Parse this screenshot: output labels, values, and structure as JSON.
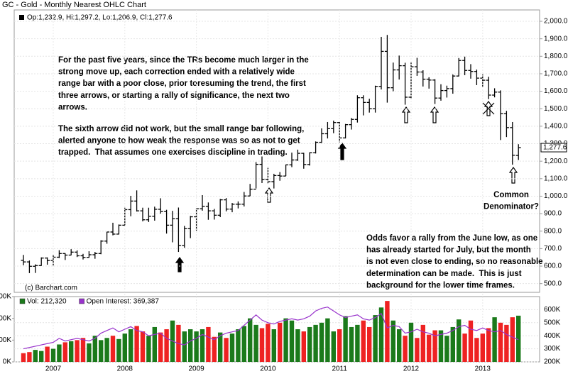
{
  "chart_data": [
    {
      "type": "ohlc",
      "title": "GC - Gold - Monthly Nearest OHLC Chart",
      "legend_text": "Op:1,232.9, Hi:1,297.2, Lo:1,206.9, Cl:1,277.6",
      "credit": "(c) Barchart.com",
      "color": "#000000",
      "grid": true,
      "open": [
        633,
        624,
        599,
        603,
        646,
        632,
        651,
        672,
        663,
        680,
        659,
        650,
        665,
        672,
        743,
        795,
        783,
        834,
        923,
        972,
        916,
        865,
        885,
        925,
        912,
        834,
        871,
        718,
        814,
        882,
        928,
        942,
        916,
        891,
        979,
        926,
        954,
        954,
        1001,
        1040,
        1182,
        1096,
        1083,
        1118,
        1115,
        1179,
        1207,
        1245,
        1181,
        1248,
        1308,
        1357,
        1386,
        1421,
        1333,
        1409,
        1439,
        1563,
        1536,
        1500,
        1628,
        1828,
        1620,
        1722,
        1746,
        1566,
        1740,
        1710,
        1669,
        1664,
        1561,
        1604,
        1615,
        1687,
        1776,
        1719,
        1713,
        1675,
        1663,
        1578,
        1595,
        1472,
        1392,
        1232.9
      ],
      "high": [
        664,
        632,
        610,
        650,
        650,
        665,
        691,
        674,
        697,
        690,
        670,
        685,
        681,
        748,
        796,
        848,
        838,
        934,
        1002,
        1033,
        934,
        934,
        940,
        988,
        922,
        916,
        935,
        830,
        887,
        931,
        1006,
        964,
        927,
        984,
        989,
        961,
        970,
        1024,
        1070,
        1195,
        1227,
        1162,
        1128,
        1138,
        1181,
        1249,
        1266,
        1248,
        1251,
        1313,
        1388,
        1424,
        1432,
        1424,
        1413,
        1447,
        1577,
        1577,
        1557,
        1632,
        1911,
        1922,
        1764,
        1804,
        1763,
        1764,
        1791,
        1720,
        1680,
        1669,
        1640,
        1632,
        1696,
        1790,
        1798,
        1755,
        1724,
        1696,
        1683,
        1617,
        1605,
        1488,
        1424,
        1297.2
      ],
      "low": [
        605,
        560,
        561,
        601,
        608,
        603,
        646,
        635,
        662,
        652,
        638,
        648,
        642,
        668,
        728,
        776,
        781,
        834,
        885,
        912,
        856,
        852,
        860,
        900,
        786,
        736,
        681,
        705,
        760,
        803,
        917,
        865,
        866,
        880,
        913,
        908,
        930,
        941,
        1001,
        1044,
        1075,
        1072,
        1044,
        1088,
        1115,
        1166,
        1202,
        1157,
        1175,
        1244,
        1305,
        1330,
        1360,
        1308,
        1330,
        1381,
        1421,
        1462,
        1478,
        1478,
        1610,
        1535,
        1600,
        1667,
        1523,
        1555,
        1688,
        1627,
        1615,
        1527,
        1546,
        1564,
        1586,
        1685,
        1692,
        1672,
        1635,
        1626,
        1555,
        1565,
        1321,
        1338,
        1180,
        1206.9
      ],
      "close": [
        624,
        599,
        603,
        646,
        632,
        651,
        672,
        663,
        680,
        659,
        650,
        665,
        672,
        743,
        795,
        783,
        834,
        923,
        972,
        916,
        865,
        885,
        925,
        912,
        834,
        871,
        718,
        814,
        882,
        928,
        942,
        916,
        891,
        979,
        926,
        954,
        954,
        1001,
        1040,
        1182,
        1096,
        1083,
        1118,
        1115,
        1179,
        1207,
        1245,
        1181,
        1248,
        1308,
        1357,
        1386,
        1421,
        1333,
        1409,
        1439,
        1563,
        1536,
        1500,
        1628,
        1828,
        1620,
        1722,
        1746,
        1566,
        1740,
        1710,
        1669,
        1664,
        1561,
        1604,
        1615,
        1687,
        1776,
        1719,
        1713,
        1675,
        1663,
        1578,
        1595,
        1472,
        1392,
        1234,
        1277.6
      ],
      "ylim": [
        450,
        2065
      ],
      "yticks": [
        {
          "value": 500,
          "label": "500.0"
        },
        {
          "value": 600,
          "label": "600.0"
        },
        {
          "value": 700,
          "label": "700.0"
        },
        {
          "value": 800,
          "label": "800.0"
        },
        {
          "value": 900,
          "label": "900.0"
        },
        {
          "value": 1000,
          "label": "1,000.0"
        },
        {
          "value": 1100,
          "label": "1,100.0"
        },
        {
          "value": 1200,
          "label": "1,200.0"
        },
        {
          "value": 1300,
          "label": "1,300.0"
        },
        {
          "value": 1400,
          "label": "1,400.0"
        },
        {
          "value": 1500,
          "label": "1,500.0"
        },
        {
          "value": 1600,
          "label": "1,600.0"
        },
        {
          "value": 1700,
          "label": "1,700.0"
        },
        {
          "value": 1800,
          "label": "1,800.0"
        },
        {
          "value": 1900,
          "label": "1,900.0"
        },
        {
          "value": 2000,
          "label": "2,000.0"
        }
      ],
      "last_label": {
        "value": 1277.6,
        "label": "1,277.6"
      },
      "annotations": [
        {
          "lines": [
            "For the past five years, since the TRs become much larger in the",
            "strong move up, each correction ended with a relatively wide",
            "range bar with a poor close, prior toresuming the trend, the first",
            "three arrows, or starting a rally of significance, the next two",
            "arrows."
          ]
        },
        {
          "lines": [
            "The sixth arrow did not work, but the small range bar following,",
            "alerted anyone to how weak the response was so as not to get",
            "trapped.  That assumes one exercises discipline in trading."
          ]
        },
        {
          "lines": [
            "Common",
            "Denominator?"
          ]
        },
        {
          "lines": [
            "Odds favor a rally from the June low, as one",
            "has already started for July, but the month",
            "is not even close to ending, so no reasonable",
            "determination can be made.  This is just",
            "background for the lower time frames."
          ]
        }
      ]
    },
    {
      "type": "bar",
      "categories": [
        null,
        null,
        null,
        null,
        null,
        "2007",
        null,
        null,
        null,
        null,
        null,
        null,
        null,
        null,
        null,
        null,
        null,
        "2008",
        null,
        null,
        null,
        null,
        null,
        null,
        null,
        null,
        null,
        null,
        null,
        "2009",
        null,
        null,
        null,
        null,
        null,
        null,
        null,
        null,
        null,
        null,
        null,
        "2010",
        null,
        null,
        null,
        null,
        null,
        null,
        null,
        null,
        null,
        null,
        null,
        "2011",
        null,
        null,
        null,
        null,
        null,
        null,
        null,
        null,
        null,
        null,
        null,
        "2012",
        null,
        null,
        null,
        null,
        null,
        null,
        null,
        null,
        null,
        null,
        null,
        "2013",
        null,
        null,
        null,
        null,
        null,
        null
      ],
      "series": [
        {
          "name": "Vol: 212,320",
          "color": "#1b7a1b",
          "up_color": "#1b7a1b",
          "down_color": "#ee2222",
          "values": [
            40000,
            45000,
            55000,
            50000,
            70000,
            60000,
            80000,
            90000,
            95000,
            100000,
            110000,
            85000,
            120000,
            100000,
            110000,
            120000,
            105000,
            130000,
            150000,
            165000,
            140000,
            120000,
            160000,
            135000,
            150000,
            190000,
            170000,
            140000,
            150000,
            140000,
            150000,
            160000,
            115000,
            135000,
            110000,
            130000,
            150000,
            165000,
            200000,
            170000,
            155000,
            175000,
            150000,
            180000,
            200000,
            190000,
            150000,
            140000,
            160000,
            170000,
            180000,
            200000,
            140000,
            150000,
            210000,
            160000,
            170000,
            190000,
            160000,
            215000,
            250000,
            280000,
            190000,
            150000,
            120000,
            180000,
            110000,
            170000,
            125000,
            145000,
            145000,
            120000,
            160000,
            195000,
            130000,
            190000,
            110000,
            130000,
            155000,
            205000,
            180000,
            170000,
            205000,
            212320
          ]
        },
        {
          "name": "Open Interest: 369,387",
          "color": "#9933cc",
          "type": "line",
          "axis": "y2",
          "values": [
            300000,
            310000,
            320000,
            330000,
            340000,
            350000,
            380000,
            360000,
            370000,
            380000,
            370000,
            360000,
            380000,
            420000,
            440000,
            460000,
            430000,
            450000,
            470000,
            440000,
            430000,
            400000,
            410000,
            420000,
            380000,
            360000,
            340000,
            330000,
            360000,
            380000,
            410000,
            390000,
            370000,
            400000,
            420000,
            430000,
            440000,
            480000,
            520000,
            560000,
            520000,
            500000,
            490000,
            510000,
            520000,
            530000,
            520000,
            530000,
            550000,
            590000,
            610000,
            620000,
            590000,
            560000,
            540000,
            550000,
            560000,
            530000,
            520000,
            540000,
            570000,
            460000,
            480000,
            470000,
            420000,
            430000,
            450000,
            430000,
            420000,
            400000,
            410000,
            420000,
            440000,
            470000,
            480000,
            450000,
            440000,
            460000,
            440000,
            430000,
            440000,
            410000,
            390000,
            369387
          ]
        }
      ],
      "ylim": [
        0,
        300000
      ],
      "yticks": [
        {
          "value": 0,
          "label": "0K"
        },
        {
          "value": 100000,
          "label": "100K"
        },
        {
          "value": 200000,
          "label": "200K"
        },
        {
          "value": 300000,
          "label": "300K"
        }
      ],
      "y2lim": [
        200000,
        700000
      ],
      "y2ticks": [
        {
          "value": 200000,
          "label": "200K"
        },
        {
          "value": 300000,
          "label": "300K"
        },
        {
          "value": 400000,
          "label": "400K"
        },
        {
          "value": 500000,
          "label": "500K"
        },
        {
          "value": 600000,
          "label": "600K"
        }
      ]
    }
  ]
}
